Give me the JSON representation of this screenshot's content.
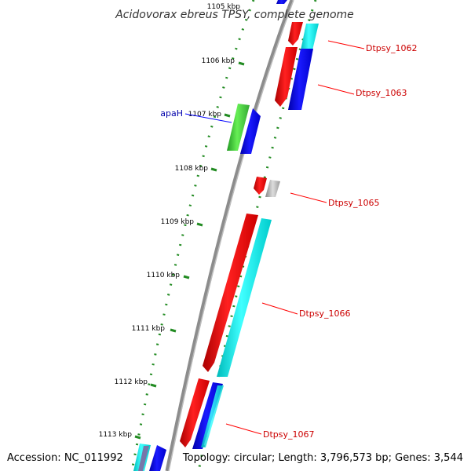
{
  "title": "Acidovorax ebreus TPSY, complete genome",
  "footer": {
    "accession": "Accession: NC_011992",
    "summary": "Topology: circular; Length: 3,796,573 bp; Genes: 3,544"
  },
  "kbp_ticks": [
    "1105 kbp",
    "1106 kbp",
    "1107 kbp",
    "1108 kbp",
    "1109 kbp",
    "1110 kbp",
    "1111 kbp",
    "1112 kbp",
    "1113 kbp"
  ],
  "gene_labels": [
    "Dtpsy_1062",
    "Dtpsy_1063",
    "apaH",
    "Dtpsy_1065",
    "Dtpsy_1066",
    "Dtpsy_1067"
  ],
  "colors": {
    "backbone": "#888888",
    "forward_cds": "#ff0000",
    "reverse_cds": "#0000ff",
    "rna_feature": "#00ffff",
    "named_gene": "#33cc33",
    "other_feature": "#aaaaaa",
    "tick": "#228b22",
    "label_line_red": "#ff0000",
    "label_line_blue": "#0000ff"
  }
}
